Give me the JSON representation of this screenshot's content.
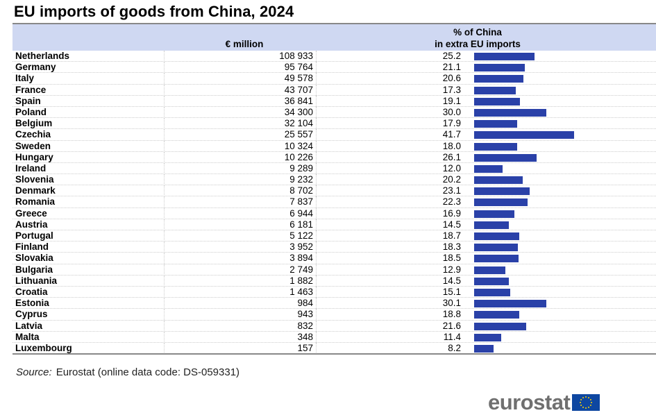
{
  "title": "EU imports of goods from China, 2024",
  "chart_data": {
    "type": "table",
    "title": "EU imports of goods from China, 2024",
    "columns": [
      "€ million",
      "% of China in extra EU imports"
    ],
    "header_value": "€ million",
    "header_pct_line1": "% of China",
    "header_pct_line2": "in extra EU imports",
    "bar_color": "#2a41a8",
    "rows": [
      {
        "country": "Netherlands",
        "value": "108 933",
        "pct": 25.2
      },
      {
        "country": "Germany",
        "value": "95 764",
        "pct": 21.1
      },
      {
        "country": "Italy",
        "value": "49 578",
        "pct": 20.6
      },
      {
        "country": "France",
        "value": "43 707",
        "pct": 17.3
      },
      {
        "country": "Spain",
        "value": "36 841",
        "pct": 19.1
      },
      {
        "country": "Poland",
        "value": "34 300",
        "pct": 30.0
      },
      {
        "country": "Belgium",
        "value": "32 104",
        "pct": 17.9
      },
      {
        "country": "Czechia",
        "value": "25 557",
        "pct": 41.7
      },
      {
        "country": "Sweden",
        "value": "10 324",
        "pct": 18.0
      },
      {
        "country": "Hungary",
        "value": "10 226",
        "pct": 26.1
      },
      {
        "country": "Ireland",
        "value": "9 289",
        "pct": 12.0
      },
      {
        "country": "Slovenia",
        "value": "9 232",
        "pct": 20.2
      },
      {
        "country": "Denmark",
        "value": "8 702",
        "pct": 23.1
      },
      {
        "country": "Romania",
        "value": "7 837",
        "pct": 22.3
      },
      {
        "country": "Greece",
        "value": "6 944",
        "pct": 16.9
      },
      {
        "country": "Austria",
        "value": "6 181",
        "pct": 14.5
      },
      {
        "country": "Portugal",
        "value": "5 122",
        "pct": 18.7
      },
      {
        "country": "Finland",
        "value": "3 952",
        "pct": 18.3
      },
      {
        "country": "Slovakia",
        "value": "3 894",
        "pct": 18.5
      },
      {
        "country": "Bulgaria",
        "value": "2 749",
        "pct": 12.9
      },
      {
        "country": "Lithuania",
        "value": "1 882",
        "pct": 14.5
      },
      {
        "country": "Croatia",
        "value": "1 463",
        "pct": 15.1
      },
      {
        "country": "Estonia",
        "value": "984",
        "pct": 30.1
      },
      {
        "country": "Cyprus",
        "value": "943",
        "pct": 18.8
      },
      {
        "country": "Latvia",
        "value": "832",
        "pct": 21.6
      },
      {
        "country": "Malta",
        "value": "348",
        "pct": 11.4
      },
      {
        "country": "Luxembourg",
        "value": "157",
        "pct": 8.2
      }
    ]
  },
  "source": {
    "label": "Source:",
    "text": "Eurostat (online data code: DS-059331)"
  },
  "logo": {
    "text": "eurostat"
  }
}
